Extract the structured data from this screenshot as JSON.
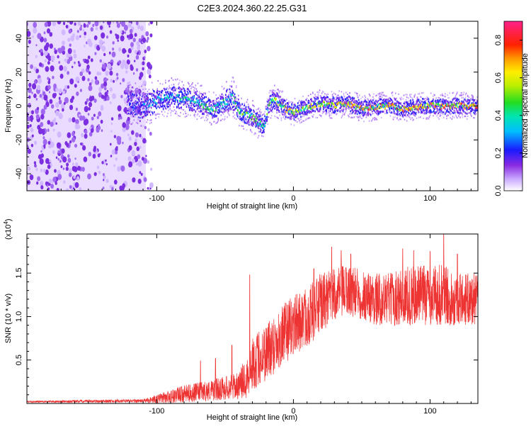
{
  "figure": {
    "title": "C2E3.2024.360.22.25.G31",
    "colorbar_label": "Normalized spectral amplitude",
    "colorbar_ticks": [
      "0.0",
      "0.2",
      "0.4",
      "0.6",
      "0.8"
    ],
    "colorbar_tick_values": [
      0.0,
      0.2,
      0.4,
      0.6,
      0.8
    ]
  },
  "chart_data": [
    {
      "type": "heatmap",
      "title": "C2E3.2024.360.22.25.G31",
      "xlabel": "Height of straight line (km)",
      "ylabel": "Frequency (Hz)",
      "xlim": [
        -195,
        135
      ],
      "ylim": [
        -50,
        50
      ],
      "x_ticks": [
        -100,
        0,
        100
      ],
      "x_tick_labels": [
        "-100",
        "0",
        "100"
      ],
      "y_ticks": [
        -40,
        -20,
        0,
        20,
        40
      ],
      "y_tick_labels": [
        "-40",
        "-20",
        "0",
        "20",
        "40"
      ],
      "colorbar": {
        "label": "Normalized spectral amplitude",
        "range": [
          0,
          0.9
        ],
        "ticks": [
          0.0,
          0.2,
          0.4,
          0.6,
          0.8
        ]
      },
      "noise_region": {
        "x_range": [
          -195,
          -108
        ],
        "amplitude": 0.1
      },
      "signal_track": {
        "x": [
          -120,
          -110,
          -100,
          -90,
          -80,
          -70,
          -60,
          -50,
          -45,
          -40,
          -35,
          -30,
          -25,
          -22,
          -18,
          -15,
          -10,
          -5,
          0,
          10,
          20,
          30,
          40,
          50,
          60,
          70,
          80,
          90,
          100,
          110,
          120,
          130,
          135
        ],
        "freq": [
          2,
          0,
          4,
          6,
          5,
          3,
          -2,
          3,
          6,
          -2,
          -5,
          -6,
          -10,
          -12,
          2,
          4,
          2,
          -2,
          -3,
          0,
          2,
          1,
          2,
          -1,
          0,
          1,
          -1,
          0,
          1,
          0,
          1,
          0,
          1
        ],
        "width": [
          8,
          8,
          7,
          7,
          7,
          7,
          6,
          7,
          8,
          6,
          6,
          6,
          6,
          5,
          6,
          6,
          6,
          5,
          5,
          5,
          5,
          5,
          5,
          5,
          5,
          5,
          5,
          5,
          5,
          5,
          5,
          5,
          5
        ],
        "amplitude": [
          0.2,
          0.3,
          0.35,
          0.35,
          0.4,
          0.4,
          0.45,
          0.4,
          0.45,
          0.5,
          0.5,
          0.5,
          0.5,
          0.45,
          0.55,
          0.55,
          0.55,
          0.6,
          0.6,
          0.6,
          0.6,
          0.65,
          0.65,
          0.65,
          0.7,
          0.7,
          0.7,
          0.7,
          0.7,
          0.7,
          0.75,
          0.75,
          0.75
        ]
      }
    },
    {
      "type": "line",
      "xlabel": "Height of straight line (km)",
      "ylabel": "SNR (10 * v/v)",
      "y_multiplier_label": "(x10",
      "y_multiplier_exponent": "4",
      "y_multiplier_close": ")",
      "xlim": [
        -195,
        135
      ],
      "ylim": [
        0,
        1.95
      ],
      "x_ticks": [
        -100,
        0,
        100
      ],
      "x_tick_labels": [
        "-100",
        "0",
        "100"
      ],
      "y_ticks": [
        0.5,
        1.0,
        1.5
      ],
      "y_tick_labels": [
        "0.5",
        "1.0",
        "1.5"
      ],
      "series": [
        {
          "color": "#ee3333",
          "envelope": {
            "x": [
              -195,
              -110,
              -100,
              -90,
              -80,
              -70,
              -60,
              -50,
              -40,
              -35,
              -30,
              -20,
              -10,
              0,
              10,
              20,
              30,
              40,
              50,
              60,
              70,
              80,
              90,
              100,
              110,
              120,
              130,
              135
            ],
            "mean": [
              0.02,
              0.03,
              0.05,
              0.08,
              0.11,
              0.13,
              0.15,
              0.18,
              0.2,
              0.3,
              0.45,
              0.6,
              0.75,
              0.9,
              1.0,
              1.15,
              1.25,
              1.3,
              1.25,
              1.2,
              1.2,
              1.22,
              1.25,
              1.25,
              1.25,
              1.2,
              1.2,
              1.2
            ],
            "spread": [
              0.01,
              0.02,
              0.05,
              0.08,
              0.1,
              0.11,
              0.12,
              0.14,
              0.15,
              0.25,
              0.3,
              0.35,
              0.35,
              0.35,
              0.35,
              0.35,
              0.3,
              0.3,
              0.3,
              0.3,
              0.3,
              0.35,
              0.35,
              0.35,
              0.35,
              0.3,
              0.3,
              0.3
            ]
          },
          "peaks": [
            [
              -32,
              1.48
            ],
            [
              15,
              1.55
            ],
            [
              28,
              1.8
            ],
            [
              35,
              1.76
            ],
            [
              42,
              1.72
            ],
            [
              80,
              1.78
            ],
            [
              88,
              1.76
            ],
            [
              100,
              1.75
            ],
            [
              110,
              1.95
            ],
            [
              120,
              1.72
            ],
            [
              -45,
              0.67
            ],
            [
              -57,
              0.52
            ],
            [
              -68,
              0.49
            ]
          ]
        }
      ]
    }
  ]
}
